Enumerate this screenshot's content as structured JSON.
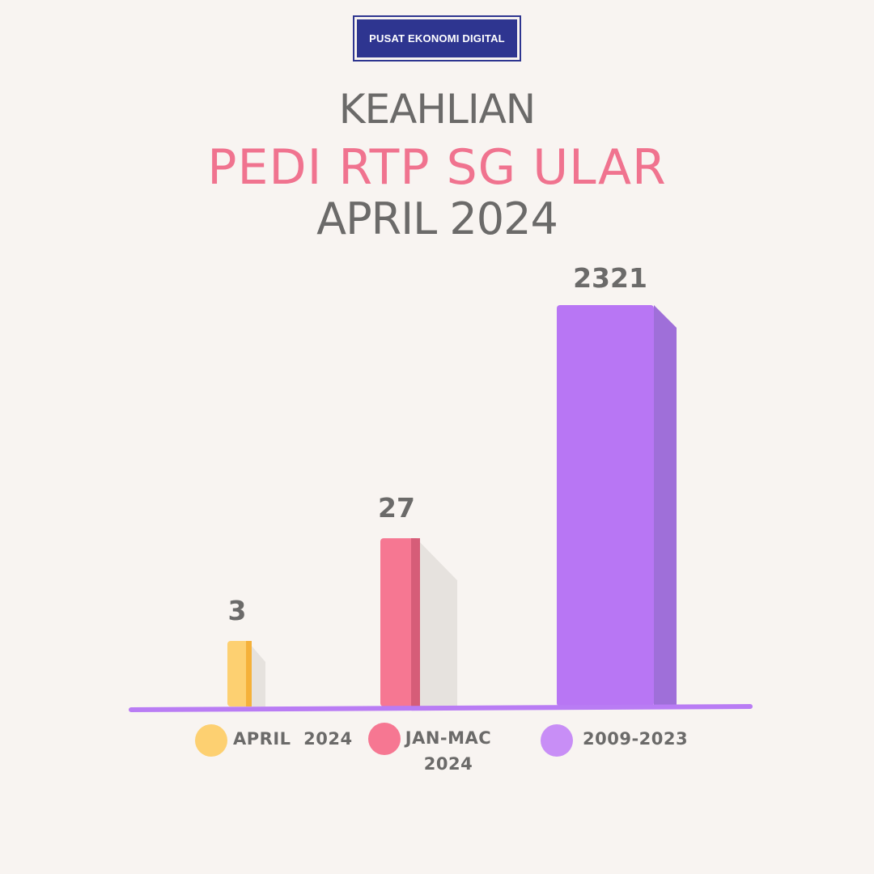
{
  "badge": {
    "label": "PUSAT EKONOMI DIGITAL"
  },
  "titles": {
    "line1": "KEAHLIAN",
    "line2": "PEDI RTP SG ULAR",
    "line3": "APRIL 2024"
  },
  "colors": {
    "background": "#f8f4f1",
    "badge": "#2e3590",
    "title_gray": "#6b6a69",
    "title_pink": "#f0738f",
    "axis": "#b97cf4"
  },
  "chart_data": {
    "type": "bar",
    "categories": [
      "APRIL  2024",
      "JAN-MAC\n2024",
      "2009-2023"
    ],
    "values": [
      3,
      27,
      2321
    ],
    "data_labels": [
      "3",
      "27",
      "2321"
    ],
    "colors": [
      "#fdd071",
      "#f67792",
      "#b876f4"
    ],
    "side_colors": [
      "#f5b13a",
      "#d65d78",
      "#9f6fd9"
    ],
    "scale": "non-linear (heights not proportional to values)",
    "legend": [
      {
        "label": "APRIL  2024",
        "color": "#fdd071"
      },
      {
        "label": "JAN-MAC\n2024",
        "color": "#f67792"
      },
      {
        "label": "2009-2023",
        "color": "#c88ef6"
      }
    ],
    "legend_position": "bottom",
    "grid": false
  }
}
